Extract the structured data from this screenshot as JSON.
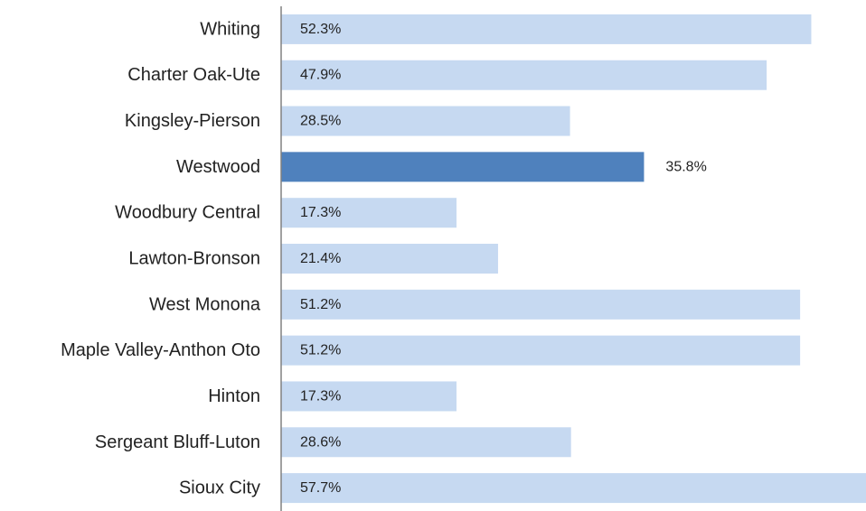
{
  "chart_data": {
    "type": "bar",
    "orientation": "horizontal",
    "categories": [
      "Whiting",
      "Charter Oak-Ute",
      "Kingsley-Pierson",
      "Westwood",
      "Woodbury Central",
      "Lawton-Bronson",
      "West Monona",
      "Maple Valley-Anthon Oto",
      "Hinton",
      "Sergeant Bluff-Luton",
      "Sioux City"
    ],
    "values": [
      52.3,
      47.9,
      28.5,
      35.8,
      17.3,
      21.4,
      51.2,
      51.2,
      17.3,
      28.6,
      57.7
    ],
    "value_labels": [
      "52.3%",
      "47.9%",
      "28.5%",
      "35.8%",
      "17.3%",
      "21.4%",
      "51.2%",
      "51.2%",
      "17.3%",
      "28.6%",
      "57.7%"
    ],
    "highlighted_category": "Westwood",
    "title": "",
    "xlabel": "",
    "ylabel": "",
    "xlim": [
      0,
      57.7
    ],
    "grid": false,
    "legend": "none",
    "colors": {
      "bar": "#c6d9f1",
      "highlight": "#4f81bd",
      "axis": "#808080"
    }
  }
}
